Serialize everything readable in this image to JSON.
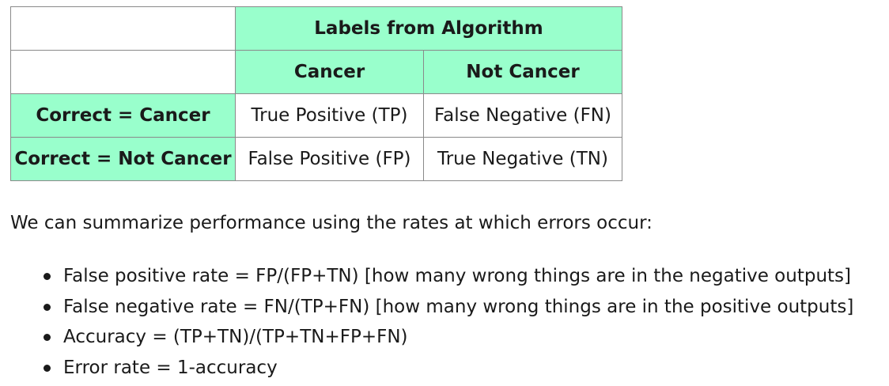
{
  "table": {
    "labels_header": "Labels from Algorithm",
    "col_cancer": "Cancer",
    "col_not_cancer": "Not Cancer",
    "row_cancer": "Correct = Cancer",
    "row_not_cancer": "Correct = Not Cancer",
    "tp": "True Positive (TP)",
    "fn": "False Negative (FN)",
    "fp": "False Positive (FP)",
    "tn": "True Negative (TN)",
    "header_color": "#99ffcc"
  },
  "summary": "We can summarize performance using the rates at which errors occur:",
  "metrics": [
    "False positive rate = FP/(FP+TN) [how many wrong things are in the negative outputs]",
    "False negative rate = FN/(TP+FN) [how many wrong things are in the positive outputs]",
    "Accuracy = (TP+TN)/(TP+TN+FP+FN)",
    "Error rate = 1-accuracy"
  ]
}
